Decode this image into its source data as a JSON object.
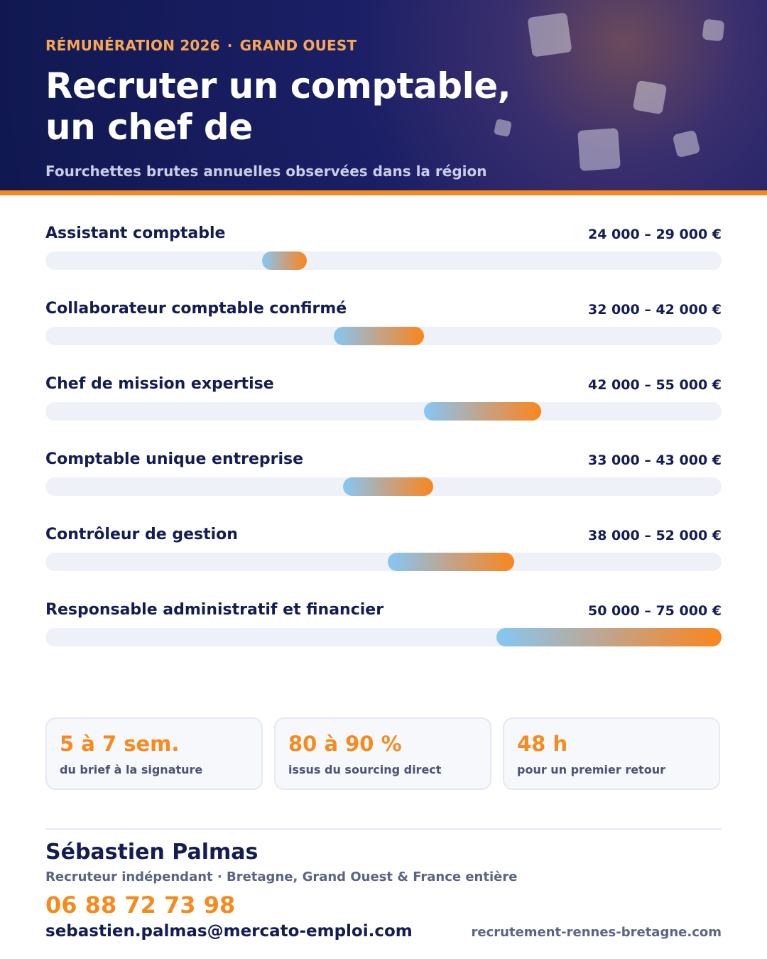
{
  "header": {
    "kicker_left": "RÉMUNÉRATION 2026",
    "kicker_sep": "·",
    "kicker_right": "GRAND OUEST",
    "title": "Recruter un comptable, un chef de",
    "subtitle": "Fourchettes brutes annuelles observées dans la région"
  },
  "colors": {
    "navy": "#141c52",
    "accent_orange": "#f78a1e",
    "bar_start_blue": "#85c7f4",
    "track_grey": "#eef1f7"
  },
  "chart_data": {
    "type": "range_bar",
    "title": "",
    "xlabel": "",
    "ylabel": "",
    "xlim": [
      0,
      75000
    ],
    "unit": "€",
    "grid": false,
    "categories": [
      "Assistant comptable",
      "Collaborateur comptable confirmé",
      "Chef de mission expertise",
      "Comptable unique entreprise",
      "Contrôleur de gestion",
      "Responsable administratif et financier"
    ],
    "series": [
      {
        "values": [
          [
            24000,
            29000
          ],
          [
            32000,
            42000
          ],
          [
            42000,
            55000
          ],
          [
            33000,
            43000
          ],
          [
            38000,
            52000
          ],
          [
            50000,
            75000
          ]
        ]
      }
    ],
    "data_labels": [
      "24 000 – 29 000 €",
      "32 000 – 42 000 €",
      "42 000 – 55 000 €",
      "33 000 – 43 000 €",
      "38 000 – 52 000 €",
      "50 000 – 75 000 €"
    ]
  },
  "stats": [
    {
      "value": "5 à 7 sem.",
      "label": "du brief à la signature"
    },
    {
      "value": "80 à 90 %",
      "label": "issus du sourcing direct"
    },
    {
      "value": "48 h",
      "label": "pour un premier retour"
    }
  ],
  "contact": {
    "name": "Sébastien Palmas",
    "role": "Recruteur indépendant · Bretagne, Grand Ouest & France entière",
    "phone": "06 88 72 73 98",
    "email": "sebastien.palmas@mercato-emploi.com",
    "website": "recrutement-rennes-bretagne.com"
  }
}
